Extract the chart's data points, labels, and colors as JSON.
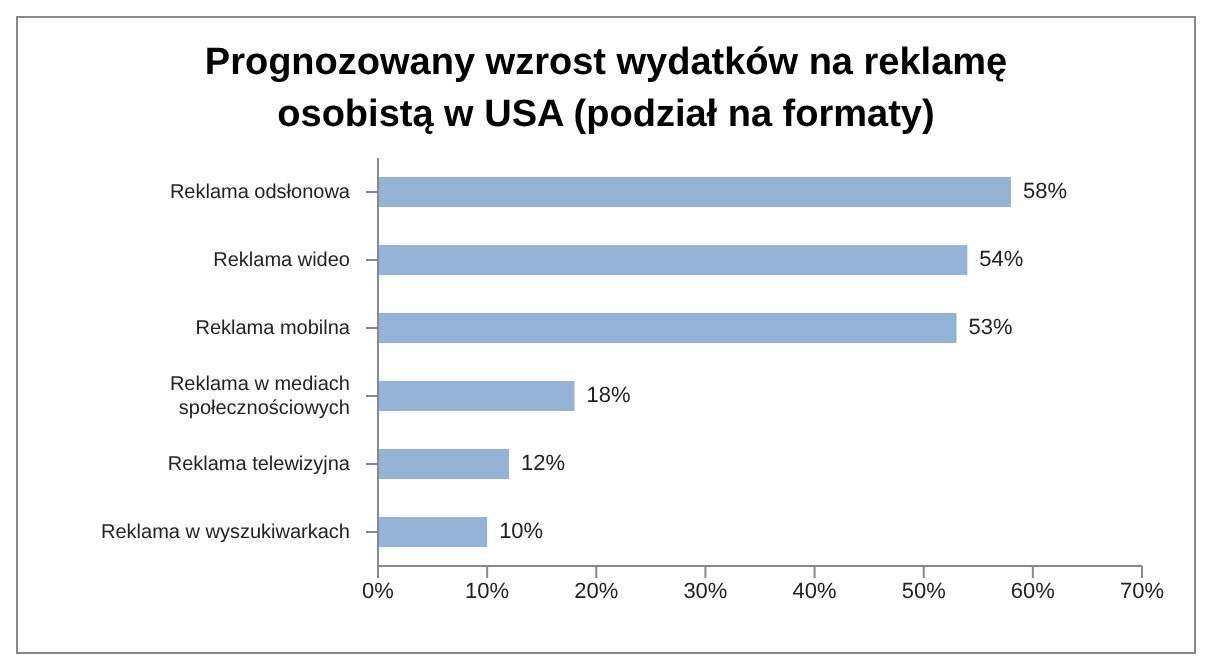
{
  "chart_data": {
    "type": "bar",
    "orientation": "horizontal",
    "title": "Prognozowany wzrost wydatków na reklamę osobistą w USA (podział na formaty)",
    "categories": [
      "Reklama odsłonowa",
      "Reklama wideo",
      "Reklama mobilna",
      "Reklama w mediach społecznościowych",
      "Reklama telewizyjna",
      "Reklama w wyszukiwarkach"
    ],
    "values": [
      58,
      54,
      53,
      18,
      12,
      10
    ],
    "value_labels": [
      "58%",
      "54%",
      "53%",
      "18%",
      "12%",
      "10%"
    ],
    "color": "#95b3d7",
    "xlim": [
      0,
      70
    ],
    "xticks": [
      {
        "value": 0,
        "label": "0%"
      },
      {
        "value": 10,
        "label": "10%"
      },
      {
        "value": 20,
        "label": "20%"
      },
      {
        "value": 30,
        "label": "30%"
      },
      {
        "value": 40,
        "label": "40%"
      },
      {
        "value": 50,
        "label": "50%"
      },
      {
        "value": 60,
        "label": "60%"
      },
      {
        "value": 70,
        "label": "70%"
      }
    ],
    "grid": false,
    "legend": false
  }
}
